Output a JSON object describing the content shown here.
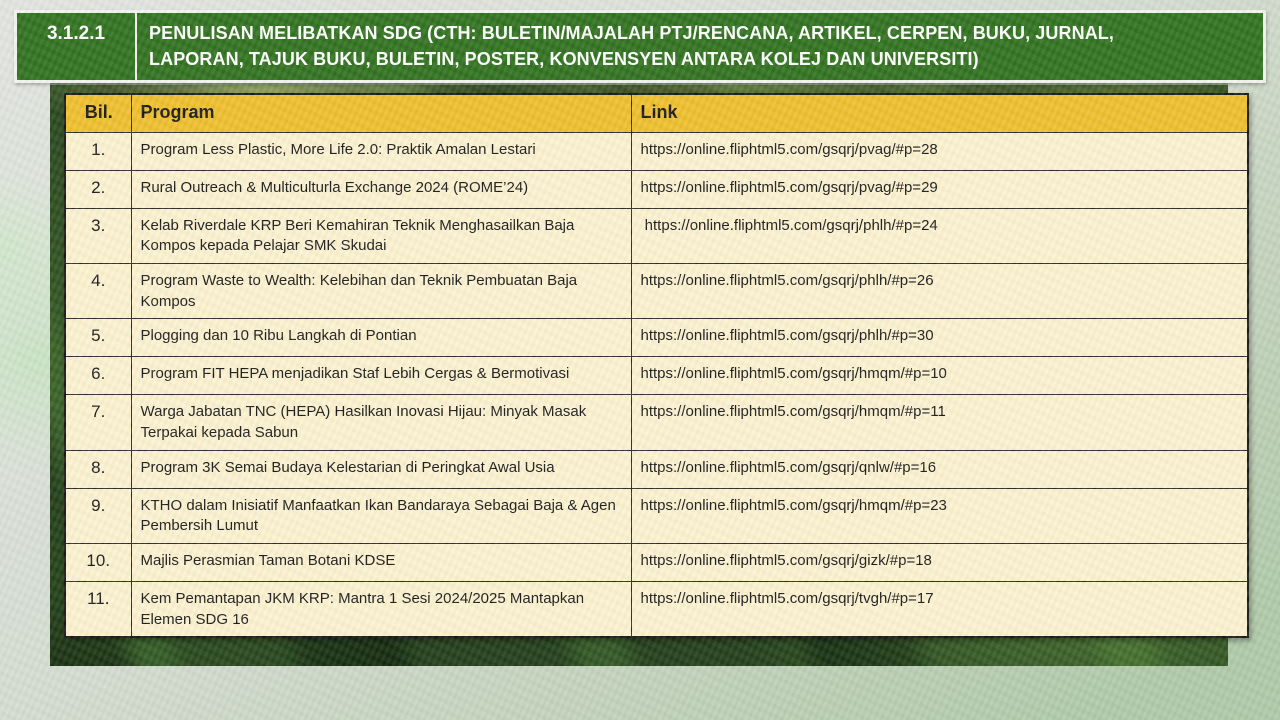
{
  "header": {
    "code": "3.1.2.1",
    "title": "PENULISAN MELIBATKAN SDG (CTH: BULETIN/MAJALAH PTJ/RENCANA, ARTIKEL, CERPEN, BUKU, JURNAL, LAPORAN, TAJUK BUKU, BULETIN, POSTER, KONVENSYEN ANTARA KOLEJ DAN UNIVERSITI)"
  },
  "table": {
    "columns": [
      "Bil.",
      "Program",
      "Link"
    ],
    "rows": [
      {
        "bil": "1.",
        "program": "Program Less Plastic, More Life 2.0: Praktik Amalan Lestari",
        "link": "https://online.fliphtml5.com/gsqrj/pvag/#p=28"
      },
      {
        "bil": "2.",
        "program": "Rural Outreach & Multiculturla Exchange 2024 (ROME’24)",
        "link": "https://online.fliphtml5.com/gsqrj/pvag/#p=29"
      },
      {
        "bil": "3.",
        "program": "Kelab Riverdale KRP Beri Kemahiran Teknik Menghasailkan Baja Kompos kepada Pelajar SMK Skudai",
        "link": " https://online.fliphtml5.com/gsqrj/phlh/#p=24"
      },
      {
        "bil": "4.",
        "program": "Program Waste to Wealth: Kelebihan dan Teknik Pembuatan Baja Kompos",
        "link": "https://online.fliphtml5.com/gsqrj/phlh/#p=26"
      },
      {
        "bil": "5.",
        "program": "Plogging dan 10 Ribu Langkah di Pontian",
        "link": "https://online.fliphtml5.com/gsqrj/phlh/#p=30"
      },
      {
        "bil": "6.",
        "program": "Program FIT HEPA menjadikan Staf Lebih Cergas & Bermotivasi",
        "link": "https://online.fliphtml5.com/gsqrj/hmqm/#p=10"
      },
      {
        "bil": "7.",
        "program": "Warga Jabatan TNC (HEPA) Hasilkan Inovasi Hijau: Minyak Masak Terpakai kepada Sabun",
        "link": "https://online.fliphtml5.com/gsqrj/hmqm/#p=11"
      },
      {
        "bil": "8.",
        "program": "Program 3K Semai Budaya Kelestarian di Peringkat Awal Usia",
        "link": "https://online.fliphtml5.com/gsqrj/qnlw/#p=16"
      },
      {
        "bil": "9.",
        "program": "KTHO dalam Inisiatif Manfaatkan Ikan Bandaraya Sebagai Baja & Agen Pembersih Lumut",
        "link": "https://online.fliphtml5.com/gsqrj/hmqm/#p=23"
      },
      {
        "bil": "10.",
        "program": "Majlis Perasmian Taman Botani KDSE",
        "link": "https://online.fliphtml5.com/gsqrj/gizk/#p=18"
      },
      {
        "bil": "11.",
        "program": "Kem Pemantapan JKM KRP: Mantra 1 Sesi 2024/2025 Mantapkan Elemen SDG 16",
        "link": "https://online.fliphtml5.com/gsqrj/tvgh/#p=17"
      }
    ]
  },
  "colors": {
    "header_green": "#337321",
    "table_header_yellow": "#efc02f",
    "row_cream": "#fcf2d0",
    "background_sage": "#aecaa8",
    "background_gray": "#dde2da"
  }
}
